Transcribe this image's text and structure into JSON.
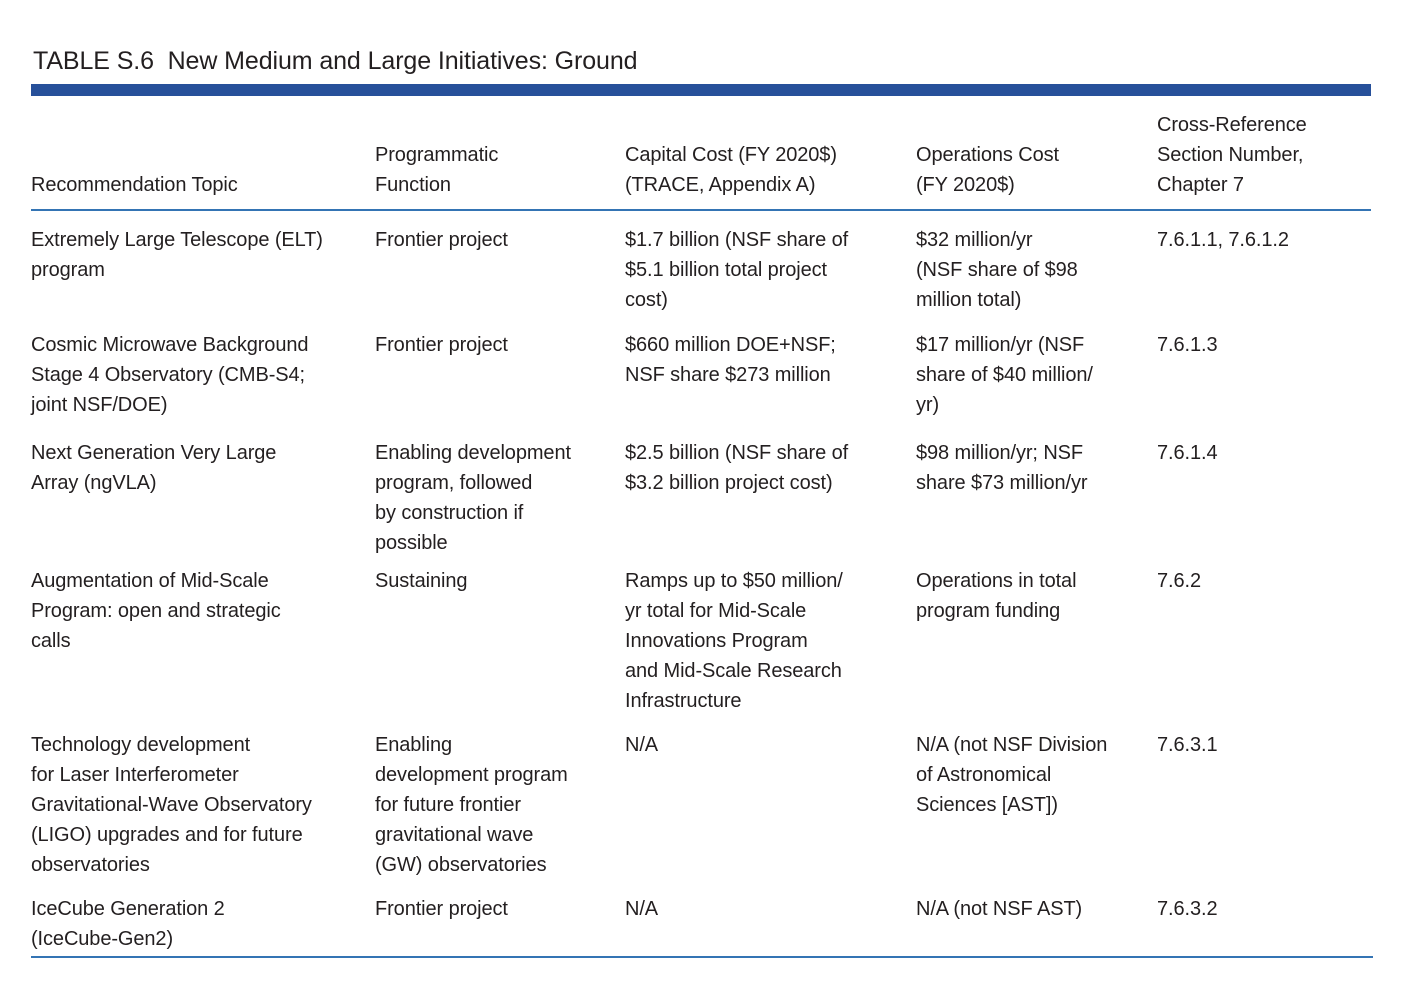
{
  "colors": {
    "accent_bar": "#27509a",
    "rule": "#3474b4",
    "text": "#231f20"
  },
  "title": "TABLE S.6  New Medium and Large Initiatives: Ground",
  "table": {
    "columns": [
      {
        "label": "Recommendation Topic"
      },
      {
        "label": "Programmatic\nFunction"
      },
      {
        "label": "Capital Cost (FY 2020$)\n(TRACE, Appendix A)"
      },
      {
        "label": "Operations Cost\n(FY 2020$)"
      },
      {
        "label": "Cross-Reference\nSection Number,\nChapter 7"
      }
    ],
    "rows": [
      {
        "topic": "Extremely Large Telescope (ELT)\nprogram",
        "function": "Frontier project",
        "capital": "$1.7 billion (NSF share of\n$5.1 billion total project\ncost)",
        "operations": "$32 million/yr\n(NSF share of $98\nmillion total)",
        "ref": "7.6.1.1, 7.6.1.2"
      },
      {
        "topic": "Cosmic Microwave Background\nStage 4 Observatory (CMB-S4;\njoint NSF/DOE)",
        "function": "Frontier project",
        "capital": "$660 million DOE+NSF;\nNSF share $273 million",
        "operations": "$17 million/yr (NSF\nshare of $40 million/\nyr)",
        "ref": "7.6.1.3"
      },
      {
        "topic": "Next Generation Very Large\nArray (ngVLA)",
        "function": "Enabling development\nprogram, followed\nby construction if\npossible",
        "capital": "$2.5 billion (NSF share of\n$3.2 billion project cost)",
        "operations": "$98 million/yr; NSF\nshare $73 million/yr",
        "ref": "7.6.1.4"
      },
      {
        "topic": "Augmentation of Mid-Scale\nProgram: open and strategic\ncalls",
        "function": "Sustaining",
        "capital": "Ramps up to $50 million/\nyr total for Mid-Scale\nInnovations Program\nand Mid-Scale Research\nInfrastructure",
        "operations": "Operations in total\nprogram funding",
        "ref": "7.6.2"
      },
      {
        "topic": "Technology development\nfor Laser Interferometer\nGravitational-Wave Observatory\n(LIGO) upgrades and for future\nobservatories",
        "function": "Enabling\ndevelopment program\nfor future frontier\ngravitational wave\n(GW) observatories",
        "capital": "N/A",
        "operations": "N/A (not NSF Division\nof Astronomical\nSciences [AST])",
        "ref": "7.6.3.1"
      },
      {
        "topic": "IceCube Generation 2\n(IceCube-Gen2)",
        "function": "Frontier project",
        "capital": "N/A",
        "operations": "N/A (not NSF AST)",
        "ref": "7.6.3.2"
      }
    ]
  }
}
